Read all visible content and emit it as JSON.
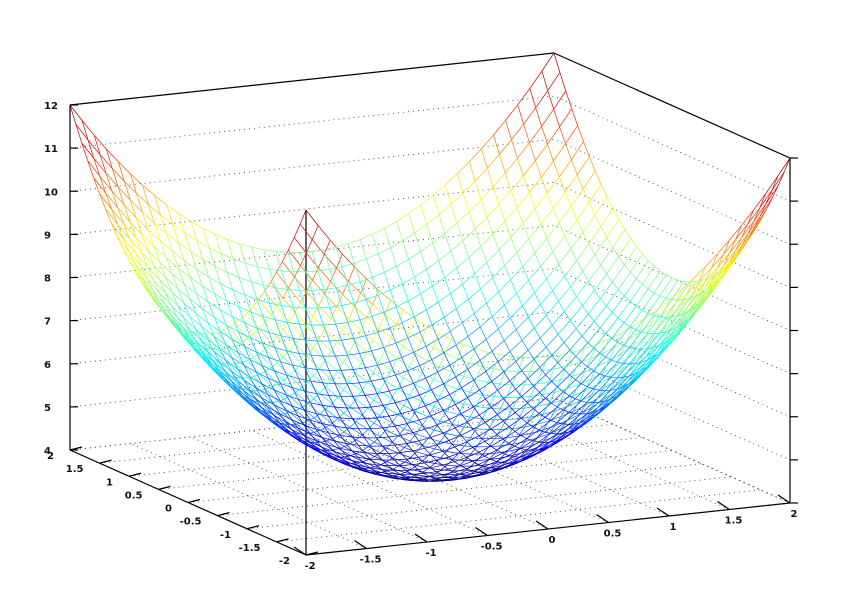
{
  "chart_data": {
    "type": "surface",
    "function": "z = x^2 + y^2 + 4",
    "title": "",
    "xlabel": "",
    "ylabel": "",
    "zlabel": "",
    "x_range": [
      -2,
      2
    ],
    "y_range": [
      -2,
      2
    ],
    "zlim": [
      4,
      12
    ],
    "grid_resolution": 41,
    "colormap": "jet",
    "grid": true,
    "legend": "none",
    "x_ticks": [
      "-2",
      "-1.5",
      "-1",
      "-0.5",
      "0",
      "0.5",
      "1",
      "1.5",
      "2"
    ],
    "y_ticks": [
      "-2",
      "-1.5",
      "-1",
      "-0.5",
      "0",
      "0.5",
      "1",
      "1.5",
      "2"
    ],
    "z_ticks": [
      "4",
      "5",
      "6",
      "7",
      "8",
      "9",
      "10",
      "11",
      "12"
    ]
  }
}
